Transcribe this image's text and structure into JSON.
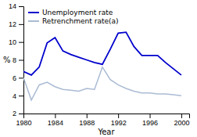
{
  "chart_data": {
    "type": "line",
    "x": [
      1980,
      1981,
      1982,
      1983,
      1984,
      1985,
      1986,
      1987,
      1988,
      1989,
      1990,
      1991,
      1992,
      1993,
      1994,
      1995,
      1996,
      1997,
      1998,
      1999,
      2000
    ],
    "series": [
      {
        "name": "Unemployment rate",
        "color": "#0000cc",
        "values": [
          6.7,
          6.3,
          7.2,
          9.9,
          10.5,
          9.0,
          8.6,
          8.3,
          8.0,
          7.7,
          7.5,
          9.2,
          11.0,
          11.1,
          9.5,
          8.5,
          8.5,
          8.5,
          7.7,
          7.0,
          6.3
        ]
      },
      {
        "name": "Retrenchment rate(a)",
        "color": "#aabbd4",
        "values": [
          6.0,
          3.5,
          5.2,
          5.5,
          5.0,
          4.7,
          4.6,
          4.5,
          4.8,
          4.7,
          7.2,
          5.8,
          5.2,
          4.8,
          4.5,
          4.3,
          4.3,
          4.2,
          4.2,
          4.1,
          4.0
        ]
      }
    ],
    "xlim": [
      1980,
      2001
    ],
    "xticks": [
      1980,
      1984,
      1988,
      1992,
      1996,
      2000
    ],
    "ylim": [
      2,
      14
    ],
    "yticks": [
      2,
      4,
      6,
      8,
      10,
      12,
      14
    ],
    "xlabel": "Year",
    "ylabel": "%",
    "legend": "upper-left",
    "grid": false
  }
}
